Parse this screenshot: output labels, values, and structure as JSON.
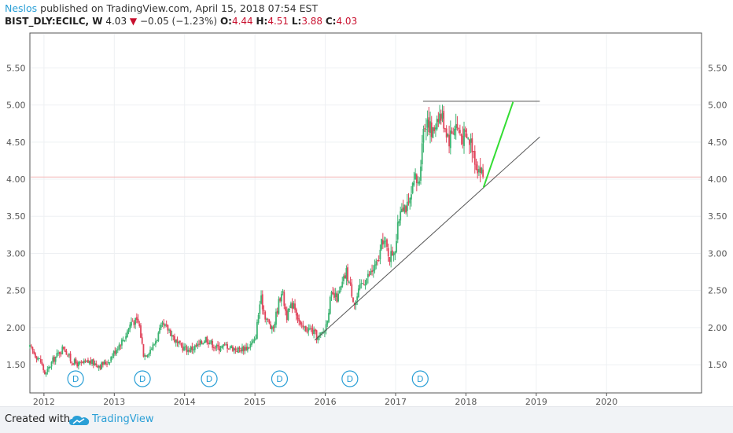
{
  "header": {
    "author": "Neslos",
    "published_text": "published on TradingView.com, April 15, 2018 07:54 EST",
    "symbol": "BIST_DLY:ECILC, W",
    "last": "4.03",
    "change_arrow": "▼",
    "change": "−0.05 (−1.23%)",
    "o_label": "O:",
    "o_value": "4.44",
    "h_label": "H:",
    "h_value": "4.51",
    "l_label": "L:",
    "l_value": "3.88",
    "c_label": "C:",
    "c_value": "4.03"
  },
  "footer": {
    "created_with": "Created with",
    "brand": "TradingView",
    "logo_icon": "tradingview-cloud-icon"
  },
  "colors": {
    "up": "#3cb371",
    "down": "#e0435a",
    "trendline": "#555555",
    "projection": "#33dd33",
    "last_price_line": "#f4b6b6",
    "marker": "#2a9fd6",
    "grid": "#eef0f3",
    "axis_text": "#555555"
  },
  "chart_data": {
    "type": "candlestick",
    "title": "BIST_DLY:ECILC, W",
    "ylim": [
      1.12,
      5.97
    ],
    "y_ticks": [
      1.5,
      2.0,
      2.5,
      3.0,
      3.5,
      4.0,
      4.5,
      5.0,
      5.5
    ],
    "y_tick_labels": [
      "1.50",
      "2.00",
      "2.50",
      "3.00",
      "3.50",
      "4.00",
      "4.50",
      "5.00",
      "5.50"
    ],
    "xlim": [
      2011.8,
      2021.35
    ],
    "x_ticks": [
      2012,
      2013,
      2014,
      2015,
      2016,
      2017,
      2018,
      2019,
      2020
    ],
    "x_tick_labels": [
      "2012",
      "2013",
      "2014",
      "2015",
      "2016",
      "2017",
      "2018",
      "2019",
      "2020"
    ],
    "last_price": 4.03,
    "price_path": [
      [
        2011.8,
        1.73
      ],
      [
        2011.95,
        1.55
      ],
      [
        2012.02,
        1.36
      ],
      [
        2012.12,
        1.55
      ],
      [
        2012.28,
        1.74
      ],
      [
        2012.38,
        1.56
      ],
      [
        2012.5,
        1.5
      ],
      [
        2012.65,
        1.54
      ],
      [
        2012.8,
        1.49
      ],
      [
        2012.92,
        1.55
      ],
      [
        2013.05,
        1.75
      ],
      [
        2013.15,
        1.87
      ],
      [
        2013.25,
        2.1
      ],
      [
        2013.35,
        2.06
      ],
      [
        2013.42,
        1.62
      ],
      [
        2013.55,
        1.75
      ],
      [
        2013.68,
        2.02
      ],
      [
        2013.78,
        1.97
      ],
      [
        2013.9,
        1.77
      ],
      [
        2014.05,
        1.7
      ],
      [
        2014.2,
        1.76
      ],
      [
        2014.3,
        1.86
      ],
      [
        2014.45,
        1.73
      ],
      [
        2014.6,
        1.76
      ],
      [
        2014.75,
        1.7
      ],
      [
        2014.9,
        1.74
      ],
      [
        2015.0,
        1.82
      ],
      [
        2015.08,
        2.4
      ],
      [
        2015.15,
        2.15
      ],
      [
        2015.25,
        1.95
      ],
      [
        2015.38,
        2.52
      ],
      [
        2015.45,
        2.15
      ],
      [
        2015.55,
        2.35
      ],
      [
        2015.65,
        2.0
      ],
      [
        2015.8,
        1.97
      ],
      [
        2015.9,
        1.85
      ],
      [
        2016.0,
        1.98
      ],
      [
        2016.08,
        2.42
      ],
      [
        2016.18,
        2.4
      ],
      [
        2016.3,
        2.75
      ],
      [
        2016.42,
        2.32
      ],
      [
        2016.52,
        2.6
      ],
      [
        2016.62,
        2.7
      ],
      [
        2016.75,
        2.88
      ],
      [
        2016.82,
        3.2
      ],
      [
        2016.92,
        2.95
      ],
      [
        2017.0,
        3.1
      ],
      [
        2017.08,
        3.7
      ],
      [
        2017.18,
        3.6
      ],
      [
        2017.28,
        4.0
      ],
      [
        2017.33,
        3.9
      ],
      [
        2017.38,
        4.6
      ],
      [
        2017.45,
        4.85
      ],
      [
        2017.52,
        4.57
      ],
      [
        2017.6,
        4.9
      ],
      [
        2017.68,
        4.8
      ],
      [
        2017.76,
        4.55
      ],
      [
        2017.85,
        4.75
      ],
      [
        2017.93,
        4.6
      ],
      [
        2018.0,
        4.55
      ],
      [
        2018.08,
        4.5
      ],
      [
        2018.15,
        4.2
      ],
      [
        2018.22,
        4.1
      ],
      [
        2018.25,
        4.03
      ]
    ],
    "trendline": [
      [
        2015.85,
        1.83
      ],
      [
        2019.05,
        4.57
      ]
    ],
    "resistance_line": [
      [
        2017.39,
        5.05
      ],
      [
        2019.05,
        5.05
      ]
    ],
    "projection_line": [
      [
        2018.25,
        3.89
      ],
      [
        2018.67,
        5.04
      ]
    ],
    "dividend_markers": [
      {
        "x": 2012.45,
        "label": "D"
      },
      {
        "x": 2013.4,
        "label": "D"
      },
      {
        "x": 2014.35,
        "label": "D"
      },
      {
        "x": 2015.35,
        "label": "D"
      },
      {
        "x": 2016.35,
        "label": "D"
      },
      {
        "x": 2017.35,
        "label": "D"
      }
    ]
  }
}
